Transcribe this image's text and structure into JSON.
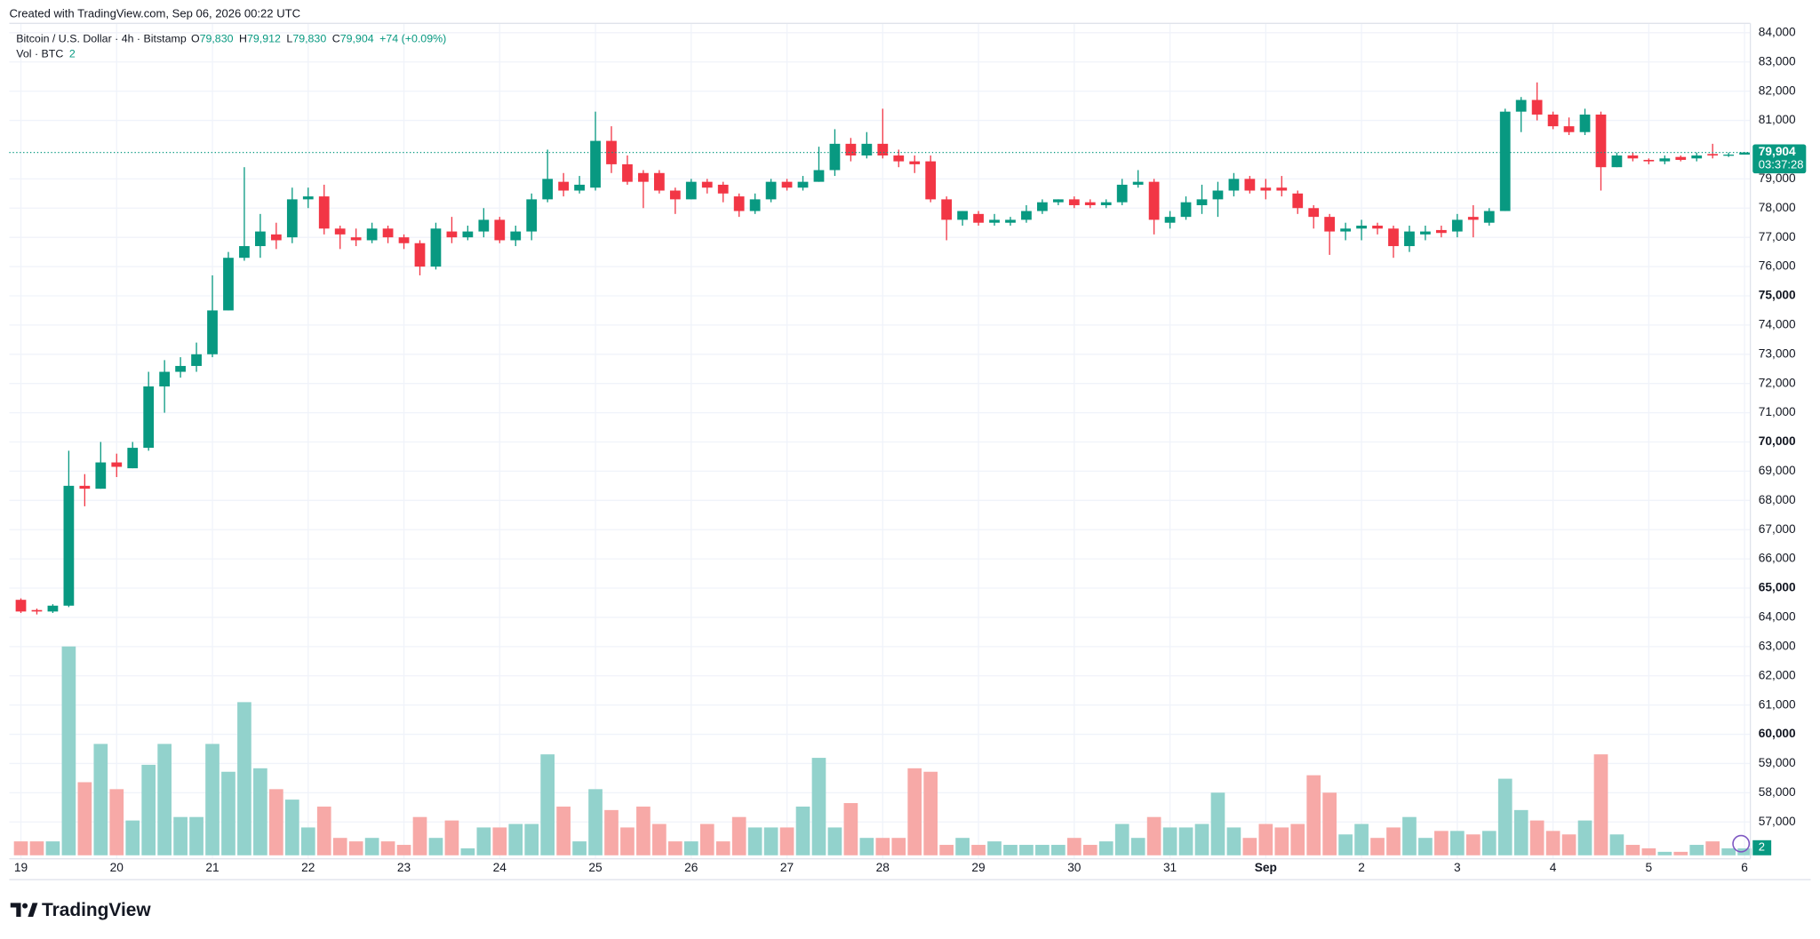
{
  "header": {
    "credit": "Created with TradingView.com, Sep 06, 2026 00:22 UTC",
    "symbol": "Bitcoin / U.S. Dollar · 4h · Bitstamp",
    "ohlc": [
      [
        "O",
        "79,830"
      ],
      [
        "H",
        "79,912"
      ],
      [
        "L",
        "79,830"
      ],
      [
        "C",
        "79,904"
      ]
    ],
    "change": "+74 (+0.09%)",
    "volume_title": "Vol · BTC",
    "volume_value": "2"
  },
  "price_badge": {
    "price": "79,904",
    "countdown": "03:37:28"
  },
  "volume_badge": "2",
  "logo": "TradingView",
  "chart_data": {
    "type": "candlestick",
    "colors": {
      "up": "#089981",
      "down": "#f23645",
      "volume_up": "#92d2cc",
      "volume_down": "#f7a9a7"
    },
    "grid": true,
    "categories": [
      "19",
      null,
      null,
      null,
      null,
      null,
      "20",
      null,
      null,
      null,
      null,
      null,
      "21",
      null,
      null,
      null,
      null,
      null,
      "22",
      null,
      null,
      null,
      null,
      null,
      "23",
      null,
      null,
      null,
      null,
      null,
      "24",
      null,
      null,
      null,
      null,
      null,
      "25",
      null,
      null,
      null,
      null,
      null,
      "26",
      null,
      null,
      null,
      null,
      null,
      "27",
      null,
      null,
      null,
      null,
      null,
      "28",
      null,
      null,
      null,
      null,
      null,
      "29",
      null,
      null,
      null,
      null,
      null,
      "30",
      null,
      null,
      null,
      null,
      null,
      "31",
      null,
      null,
      null,
      null,
      null,
      "Sep",
      null,
      null,
      null,
      null,
      null,
      "2",
      null,
      null,
      null,
      null,
      null,
      "3",
      null,
      null,
      null,
      null,
      null,
      "4",
      null,
      null,
      null,
      null,
      null,
      "5",
      null,
      null,
      null,
      null,
      null,
      "6"
    ],
    "open": [
      64600,
      64250,
      64200,
      64400,
      68500,
      68400,
      69300,
      69100,
      69800,
      71900,
      72400,
      72600,
      73000,
      74500,
      76300,
      76700,
      77100,
      77000,
      78300,
      78400,
      77300,
      77000,
      76900,
      77300,
      77000,
      76800,
      76000,
      77200,
      77000,
      77200,
      77600,
      76900,
      77200,
      78300,
      78900,
      78600,
      78700,
      80300,
      79500,
      79200,
      79200,
      78600,
      78300,
      78900,
      78800,
      78400,
      77900,
      78300,
      78900,
      78700,
      78900,
      79300,
      80200,
      79800,
      80200,
      79800,
      79600,
      79600,
      78300,
      77600,
      77800,
      77500,
      77500,
      77600,
      77900,
      78200,
      78300,
      78200,
      78100,
      78200,
      78800,
      78900,
      77500,
      77700,
      78100,
      78300,
      78600,
      79000,
      78700,
      78700,
      78500,
      78000,
      77700,
      77200,
      77300,
      77400,
      77300,
      76700,
      77100,
      77250,
      77200,
      77700,
      77500,
      77900,
      81300,
      81700,
      81200,
      80800,
      80600,
      81200,
      79400,
      79800,
      79650,
      79600,
      79750,
      79700,
      79850,
      79800,
      79830
    ],
    "high": [
      64650,
      64300,
      64450,
      69700,
      68900,
      70000,
      69600,
      70000,
      72400,
      72800,
      72900,
      73400,
      75700,
      76500,
      79400,
      77800,
      77500,
      78700,
      78700,
      78800,
      77400,
      77300,
      77500,
      77400,
      77100,
      76900,
      77500,
      77700,
      77400,
      78000,
      77700,
      77400,
      78500,
      80000,
      79200,
      79100,
      81300,
      80800,
      79800,
      79300,
      79300,
      78700,
      79000,
      79000,
      78900,
      78500,
      78500,
      79000,
      79000,
      79100,
      80100,
      80700,
      80400,
      80600,
      81400,
      80000,
      79800,
      79800,
      78400,
      77900,
      77900,
      77800,
      77700,
      78100,
      78300,
      78300,
      78400,
      78300,
      78300,
      79000,
      79300,
      79000,
      77900,
      78400,
      78800,
      78900,
      79200,
      79100,
      79000,
      79100,
      78600,
      78100,
      77800,
      77500,
      77600,
      77500,
      77400,
      77400,
      77400,
      77400,
      77800,
      78100,
      78000,
      81400,
      81800,
      82300,
      81300,
      81100,
      81400,
      81300,
      79900,
      79900,
      79700,
      79800,
      79800,
      79900,
      80200,
      79900,
      79912
    ],
    "low": [
      64150,
      64100,
      64150,
      64350,
      67800,
      68400,
      68800,
      69100,
      69700,
      71000,
      72200,
      72400,
      72900,
      74500,
      76200,
      76300,
      76600,
      76800,
      78000,
      77100,
      76600,
      76700,
      76800,
      76800,
      76600,
      75700,
      75900,
      76800,
      76900,
      77000,
      76800,
      76700,
      76900,
      78200,
      78400,
      78500,
      78600,
      79200,
      78800,
      78000,
      78500,
      77800,
      78300,
      78500,
      78200,
      77700,
      77800,
      78200,
      78600,
      78600,
      78900,
      79100,
      79600,
      79700,
      79700,
      79400,
      79200,
      78200,
      76900,
      77400,
      77400,
      77400,
      77400,
      77500,
      77800,
      78100,
      78000,
      78000,
      78000,
      78100,
      78700,
      77100,
      77300,
      77600,
      77800,
      77700,
      78400,
      78500,
      78300,
      78400,
      77800,
      77300,
      76400,
      76900,
      76900,
      77100,
      76300,
      76500,
      76900,
      77000,
      77000,
      77000,
      77400,
      77900,
      80600,
      81000,
      80700,
      80500,
      80500,
      78600,
      79400,
      79600,
      79500,
      79500,
      79600,
      79600,
      79700,
      79750,
      79830
    ],
    "close": [
      64200,
      64200,
      64400,
      68500,
      68400,
      69300,
      69150,
      69800,
      71900,
      72400,
      72600,
      73000,
      74500,
      76300,
      76700,
      77200,
      76900,
      78300,
      78400,
      77300,
      77100,
      76900,
      77300,
      77000,
      76800,
      76000,
      77300,
      77000,
      77200,
      77600,
      76900,
      77200,
      78300,
      79000,
      78600,
      78800,
      80300,
      79500,
      78900,
      78900,
      78600,
      78300,
      78900,
      78700,
      78500,
      77900,
      78300,
      78900,
      78700,
      78900,
      79300,
      80200,
      79800,
      80200,
      79800,
      79600,
      79500,
      78300,
      77600,
      77900,
      77500,
      77600,
      77600,
      77900,
      78200,
      78300,
      78100,
      78100,
      78200,
      78800,
      78900,
      77600,
      77700,
      78200,
      78300,
      78600,
      79000,
      78600,
      78600,
      78600,
      78000,
      77700,
      77200,
      77300,
      77400,
      77300,
      76700,
      77200,
      77200,
      77150,
      77600,
      77600,
      77900,
      81300,
      81700,
      81200,
      80800,
      80600,
      81200,
      79400,
      79800,
      79700,
      79600,
      79700,
      79650,
      79800,
      79800,
      79830,
      79904
    ],
    "volume": [
      4,
      4,
      4,
      60,
      21,
      32,
      19,
      10,
      26,
      32,
      11,
      11,
      32,
      24,
      44,
      25,
      19,
      16,
      8,
      14,
      5,
      4,
      5,
      4,
      3,
      11,
      5,
      10,
      2,
      8,
      8,
      9,
      9,
      29,
      14,
      4,
      19,
      13,
      8,
      14,
      9,
      4,
      4,
      9,
      4,
      11,
      8,
      8,
      8,
      14,
      28,
      8,
      15,
      5,
      5,
      5,
      25,
      24,
      3,
      5,
      3,
      4,
      3,
      3,
      3,
      3,
      5,
      3,
      4,
      9,
      5,
      11,
      8,
      8,
      9,
      18,
      8,
      5,
      9,
      8,
      9,
      23,
      18,
      6,
      9,
      5,
      8,
      11,
      5,
      7,
      7,
      6,
      7,
      22,
      13,
      10,
      7,
      6,
      10,
      29,
      6,
      3,
      2,
      1,
      1,
      3,
      4,
      2,
      2
    ],
    "vlim": [
      0,
      70
    ],
    "ylim": [
      55860,
      84320
    ],
    "yticks": [
      {
        "value": 57000,
        "label": "57,000"
      },
      {
        "value": 58000,
        "label": "58,000"
      },
      {
        "value": 59000,
        "label": "59,000"
      },
      {
        "value": 60000,
        "label": "60,000"
      },
      {
        "value": 61000,
        "label": "61,000"
      },
      {
        "value": 62000,
        "label": "62,000"
      },
      {
        "value": 63000,
        "label": "63,000"
      },
      {
        "value": 64000,
        "label": "64,000"
      },
      {
        "value": 65000,
        "label": "65,000"
      },
      {
        "value": 66000,
        "label": "66,000"
      },
      {
        "value": 67000,
        "label": "67,000"
      },
      {
        "value": 68000,
        "label": "68,000"
      },
      {
        "value": 69000,
        "label": "69,000"
      },
      {
        "value": 70000,
        "label": "70,000"
      },
      {
        "value": 71000,
        "label": "71,000"
      },
      {
        "value": 72000,
        "label": "72,000"
      },
      {
        "value": 73000,
        "label": "73,000"
      },
      {
        "value": 74000,
        "label": "74,000"
      },
      {
        "value": 75000,
        "label": "75,000"
      },
      {
        "value": 76000,
        "label": "76,000"
      },
      {
        "value": 77000,
        "label": "77,000"
      },
      {
        "value": 78000,
        "label": "78,000"
      },
      {
        "value": 79000,
        "label": "79,000"
      },
      {
        "value": 81000,
        "label": "81,000"
      },
      {
        "value": 82000,
        "label": "82,000"
      },
      {
        "value": 83000,
        "label": "83,000"
      },
      {
        "value": 84000,
        "label": "84,000"
      }
    ]
  }
}
